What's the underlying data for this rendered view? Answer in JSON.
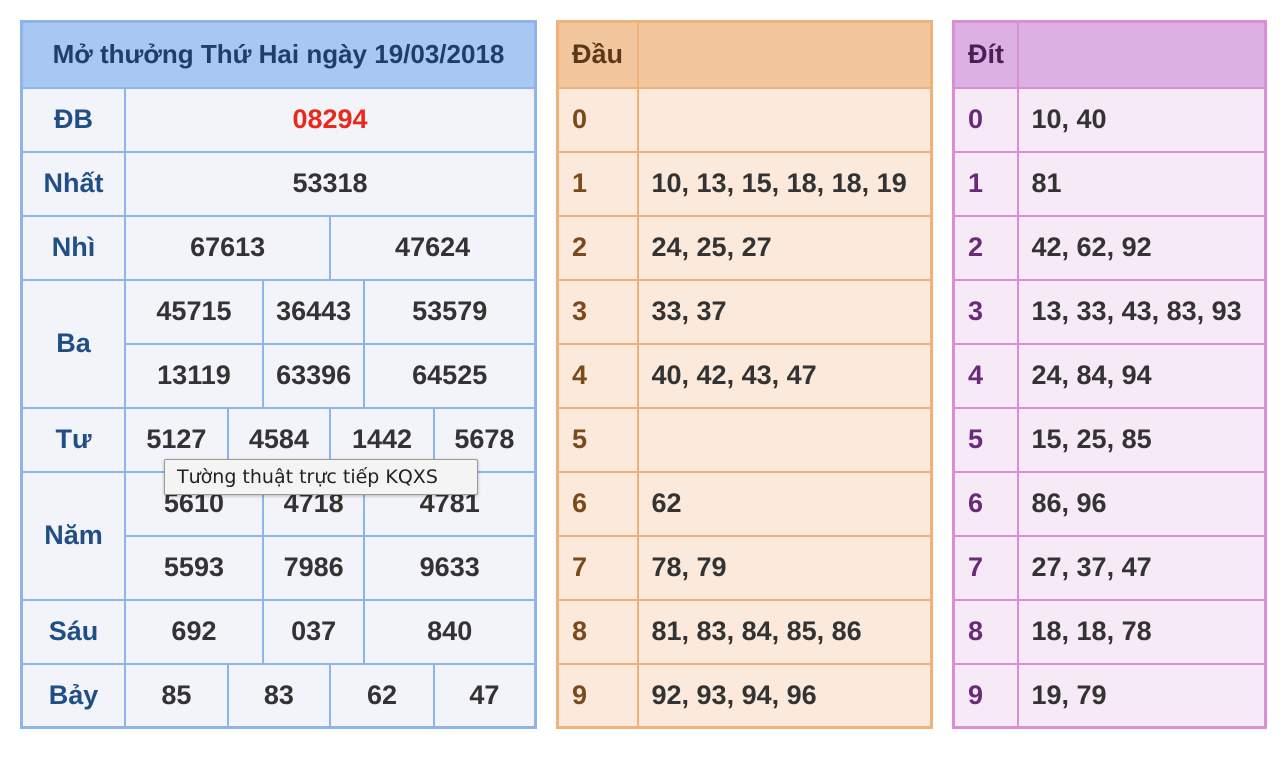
{
  "results": {
    "title": "Mở thưởng Thứ Hai ngày 19/03/2018",
    "special": {
      "label": "ĐB",
      "value": "08294"
    },
    "first": {
      "label": "Nhất",
      "value": "53318"
    },
    "second": {
      "label": "Nhì",
      "values": [
        "67613",
        "47624"
      ]
    },
    "third": {
      "label": "Ba",
      "values": [
        "45715",
        "36443",
        "53579",
        "13119",
        "63396",
        "64525"
      ]
    },
    "fourth": {
      "label": "Tư",
      "values": [
        "5127",
        "4584",
        "1442",
        "5678"
      ]
    },
    "fifth": {
      "label": "Năm",
      "values": [
        "5610",
        "4718",
        "4781",
        "5593",
        "7986",
        "9633"
      ]
    },
    "sixth": {
      "label": "Sáu",
      "values": [
        "692",
        "037",
        "840"
      ]
    },
    "seventh": {
      "label": "Bảy",
      "values": [
        "85",
        "83",
        "62",
        "47"
      ]
    }
  },
  "tooltip": "Tường thuật trực tiếp KQXS",
  "dau": {
    "header": "Đầu",
    "rows": [
      {
        "digit": "0",
        "values": ""
      },
      {
        "digit": "1",
        "values": "10, 13, 15, 18, 18, 19"
      },
      {
        "digit": "2",
        "values": "24, 25, 27"
      },
      {
        "digit": "3",
        "values": "33, 37"
      },
      {
        "digit": "4",
        "values": "40, 42, 43, 47"
      },
      {
        "digit": "5",
        "values": ""
      },
      {
        "digit": "6",
        "values": "62"
      },
      {
        "digit": "7",
        "values": "78, 79"
      },
      {
        "digit": "8",
        "values": "81, 83, 84, 85, 86"
      },
      {
        "digit": "9",
        "values": "92, 93, 94, 96"
      }
    ]
  },
  "dit": {
    "header": "Đít",
    "rows": [
      {
        "digit": "0",
        "values": "10, 40"
      },
      {
        "digit": "1",
        "values": "81"
      },
      {
        "digit": "2",
        "values": "42, 62, 92"
      },
      {
        "digit": "3",
        "values": "13, 33, 43, 83, 93"
      },
      {
        "digit": "4",
        "values": "24, 84, 94"
      },
      {
        "digit": "5",
        "values": "15, 25, 85"
      },
      {
        "digit": "6",
        "values": "86, 96"
      },
      {
        "digit": "7",
        "values": "27, 37, 47"
      },
      {
        "digit": "8",
        "values": "18, 18, 78"
      },
      {
        "digit": "9",
        "values": "19, 79"
      }
    ]
  },
  "colors": {
    "results_border": "#8db5ea",
    "results_header": "#a7c8f3",
    "special_prize": "#e8291c",
    "dau_border": "#f0b27a",
    "dit_border": "#d98ed5"
  }
}
